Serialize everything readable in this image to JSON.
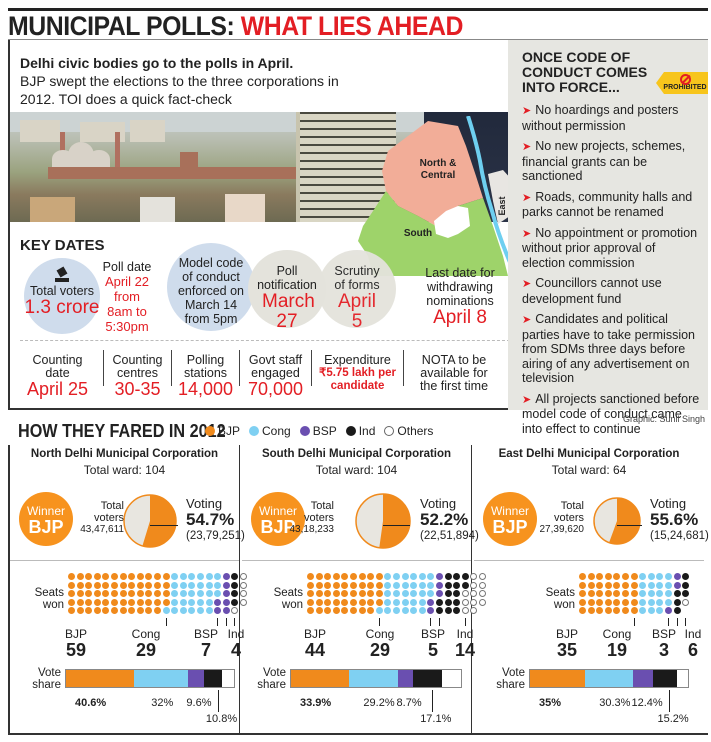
{
  "title": {
    "part1": "MUNICIPAL POLLS: ",
    "part2": "WHAT LIES AHEAD"
  },
  "intro": {
    "lead": "Delhi civic bodies go to the polls in April.",
    "body": "BJP swept the elections to the three corporations in 2012. TOI does a quick fact-check"
  },
  "map": {
    "labels": {
      "north": "North &",
      "north2": "Central",
      "south": "South",
      "east": "East"
    }
  },
  "code_of_conduct": {
    "title": "ONCE CODE OF CONDUCT COMES INTO FORCE...",
    "badge": "PROHIBITED",
    "items": [
      "No hoardings and posters without permission",
      "No new projects, schemes, financial grants can be sanctioned",
      "Roads, community halls and parks cannot be renamed",
      "No appointment or promotion without prior approval of election commission",
      "Councillors cannot use development fund",
      "Candidates and political parties have to take permission from SDMs three days before airing of any advertisement on television",
      "All projects sanctioned before model code of conduct came into effect to continue"
    ]
  },
  "key_dates": {
    "heading": "KEY DATES",
    "total_voters": {
      "label": "Total voters",
      "value": "1.3 crore"
    },
    "poll_date": {
      "label": "Poll date",
      "value": "April 22 from 8am to 5:30pm"
    },
    "model_code": {
      "label": "Model code of conduct enforced on March 14 from 5pm"
    },
    "poll_notification": {
      "label": "Poll notification",
      "value": "March 27"
    },
    "scrutiny": {
      "label": "Scrutiny of forms",
      "value": "April 5"
    },
    "withdrawal": {
      "label": "Last date for withdrawing nominations",
      "value": "April 8"
    }
  },
  "stats": [
    {
      "label": "Counting date",
      "value": "April 25"
    },
    {
      "label": "Counting centres",
      "value": "30-35"
    },
    {
      "label": "Polling stations",
      "value": "14,000"
    },
    {
      "label": "Govt staff engaged",
      "value": "70,000"
    },
    {
      "label": "Expenditure",
      "value": "₹5.75 lakh per candidate"
    },
    {
      "label": "NOTA to be available for the first time",
      "value": ""
    }
  ],
  "credit": "Graphic: Sunil Singh",
  "fared": {
    "heading": "HOW THEY FARED IN 2012",
    "legend": [
      {
        "name": "BJP",
        "color": "#f08a1c"
      },
      {
        "name": "Cong",
        "color": "#7fd0f2"
      },
      {
        "name": "BSP",
        "color": "#6a4fb0"
      },
      {
        "name": "Ind",
        "color": "#1a1a1a"
      },
      {
        "name": "Others",
        "color": "#ffffff"
      }
    ]
  },
  "chart_data": [
    {
      "type": "pie",
      "title": "North Delhi Municipal Corporation",
      "total_ward": "Total ward: 104",
      "winner": "BJP",
      "total_voters": "43,47,611",
      "voting_pct": 54.7,
      "voting_pct_label": "54.7%",
      "voting_count": "(23,79,251)",
      "seats": {
        "BJP": 59,
        "Cong": 29,
        "BSP": 7,
        "Ind": 4,
        "Others": 5
      },
      "vote_share": {
        "BJP": 40.6,
        "Cong": 32,
        "BSP": 9.6,
        "Ind": 10.8
      },
      "vote_share_labels": [
        "40.6%",
        "32%",
        "9.6%",
        "10.8%"
      ]
    },
    {
      "type": "pie",
      "title": "South Delhi Municipal Corporation",
      "total_ward": "Total ward: 104",
      "winner": "BJP",
      "total_voters": "43,18,233",
      "voting_pct": 52.2,
      "voting_pct_label": "52.2%",
      "voting_count": "(22,51,894)",
      "seats": {
        "BJP": 44,
        "Cong": 29,
        "BSP": 5,
        "Ind": 14,
        "Others": 12
      },
      "vote_share": {
        "BJP": 33.9,
        "Cong": 29.2,
        "BSP": 8.7,
        "Ind": 17.1
      },
      "vote_share_labels": [
        "33.9%",
        "29.2%",
        "8.7%",
        "17.1%"
      ]
    },
    {
      "type": "pie",
      "title": "East Delhi Municipal Corporation",
      "total_ward": "Total ward: 64",
      "winner": "BJP",
      "total_voters": "27,39,620",
      "voting_pct": 55.6,
      "voting_pct_label": "55.6%",
      "voting_count": "(15,24,681)",
      "seats": {
        "BJP": 35,
        "Cong": 19,
        "BSP": 3,
        "Ind": 6,
        "Others": 1
      },
      "vote_share": {
        "BJP": 35,
        "Cong": 30.3,
        "BSP": 12.4,
        "Ind": 15.2
      },
      "vote_share_labels": [
        "35%",
        "30.3%",
        "12.4%",
        "15.2%"
      ]
    }
  ],
  "labels": {
    "winner": "Winner",
    "total_voters": "Total voters",
    "voting": "Voting",
    "seats_won": "Seats won",
    "vote_share": "Vote share"
  }
}
